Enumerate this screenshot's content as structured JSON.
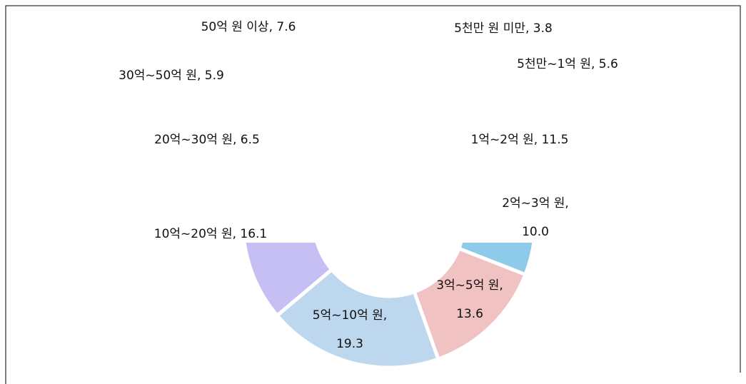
{
  "chart_data": {
    "type": "doughnut",
    "categories": [
      "5천만 원 미만",
      "5천만~1억 원",
      "1억~2억 원",
      "2억~3억 원",
      "3억~5억 원",
      "5억~10억 원",
      "10억~20억 원",
      "20억~30억 원",
      "30억~50억 원",
      "50억 원 이상"
    ],
    "values": [
      3.8,
      5.6,
      11.5,
      10.0,
      13.6,
      19.3,
      16.1,
      6.5,
      5.9,
      7.6
    ],
    "value_labels": [
      "5천만 원 미만, 3.8",
      "5천만~1억 원, 5.6",
      "1억~2억 원, 11.5",
      "2억~3억 원, 10.0",
      "3억~5억 원, 13.6",
      "5억~10억 원, 19.3",
      "10억~20억 원, 16.1",
      "20억~30억 원, 6.5",
      "30억~50억 원, 5.9",
      "50억 원 이상, 7.6"
    ],
    "colors": [
      "#f6d6a8",
      "#cfe6b8",
      "#f8c9d8",
      "#8ecbea",
      "#f0c2c2",
      "#bdd7ee",
      "#c5bff4",
      "#e4d2b8",
      "#d6e4f0",
      "#f3d9e6"
    ]
  }
}
